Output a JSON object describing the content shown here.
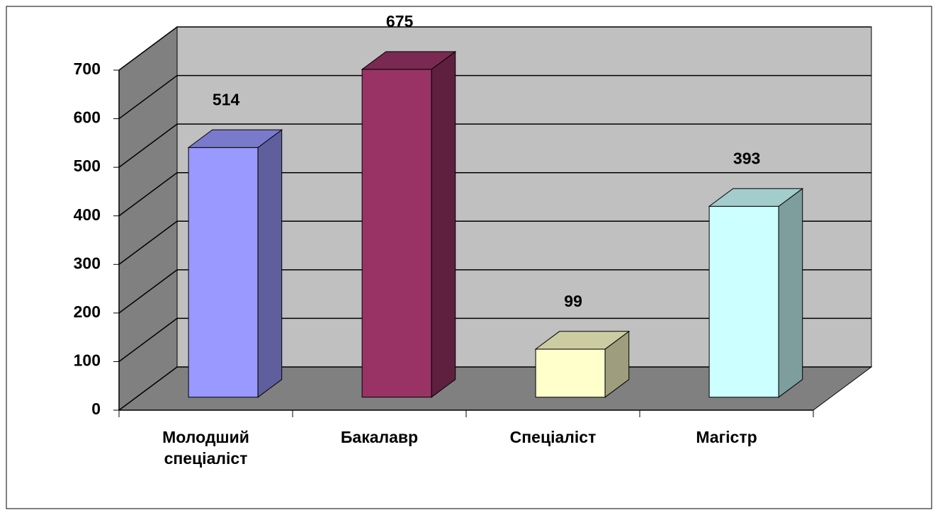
{
  "chart_data": {
    "type": "bar3d",
    "categories": [
      "Молодший спеціаліст",
      "Бакалавр",
      "Спеціаліст",
      "Магістр"
    ],
    "values": [
      514,
      675,
      99,
      393
    ],
    "colors": [
      "#9999ff",
      "#993366",
      "#ffffcc",
      "#ccffff"
    ],
    "ylim": [
      0,
      700
    ],
    "yticks": [
      0,
      100,
      200,
      300,
      400,
      500,
      600,
      700
    ],
    "grid": true
  }
}
